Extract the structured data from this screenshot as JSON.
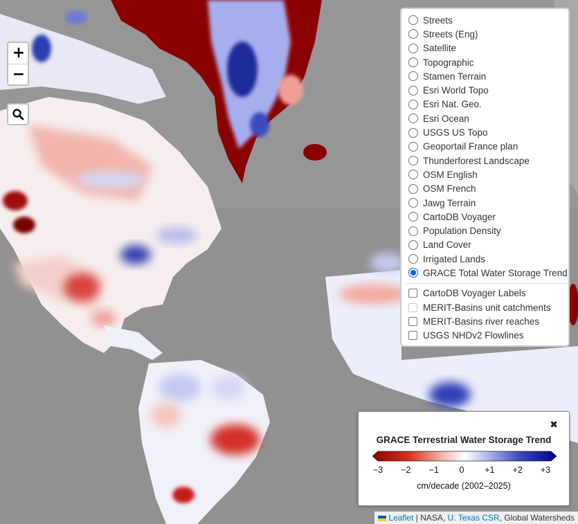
{
  "map": {
    "basemap_color": "#9a9a9a",
    "overlay": "GRACE Total Water Storage Trend",
    "color_scale": {
      "min": -3,
      "max": 3,
      "neg": "#8b0000",
      "mid": "#ffffff",
      "pos": "#00008b"
    }
  },
  "controls": {
    "zoom_in_label": "+",
    "zoom_out_label": "−",
    "search_icon": "search-icon"
  },
  "layers": {
    "base": [
      {
        "label": "Streets",
        "selected": false
      },
      {
        "label": "Streets (Eng)",
        "selected": false
      },
      {
        "label": "Satellite",
        "selected": false
      },
      {
        "label": "Topographic",
        "selected": false
      },
      {
        "label": "Stamen Terrain",
        "selected": false
      },
      {
        "label": "Esri World Topo",
        "selected": false
      },
      {
        "label": "Esri Nat. Geo.",
        "selected": false
      },
      {
        "label": "Esri Ocean",
        "selected": false
      },
      {
        "label": "USGS US Topo",
        "selected": false
      },
      {
        "label": "Geoportail France plan",
        "selected": false
      },
      {
        "label": "Thunderforest Landscape",
        "selected": false
      },
      {
        "label": "OSM English",
        "selected": false
      },
      {
        "label": "OSM French",
        "selected": false
      },
      {
        "label": "Jawg Terrain",
        "selected": false
      },
      {
        "label": "CartoDB Voyager",
        "selected": false
      },
      {
        "label": "Population Density",
        "selected": false
      },
      {
        "label": "Land Cover",
        "selected": false
      },
      {
        "label": "Irrigated Lands",
        "selected": false
      },
      {
        "label": "GRACE Total Water Storage Trend",
        "selected": true
      }
    ],
    "overlays": [
      {
        "label": "CartoDB Voyager Labels",
        "checked": false,
        "disabled": false
      },
      {
        "label": "MERIT-Basins unit catchments",
        "checked": false,
        "disabled": true
      },
      {
        "label": "MERIT-Basins river reaches",
        "checked": false,
        "disabled": false
      },
      {
        "label": "USGS NHDv2 Flowlines",
        "checked": false,
        "disabled": false
      }
    ]
  },
  "legend": {
    "close_label": "✖",
    "title": "GRACE Terrestrial Water Storage Trend",
    "ticks": [
      "−3",
      "−2",
      "−1",
      "0",
      "+1",
      "+2",
      "+3"
    ],
    "units": "cm/decade  (2002–2025)"
  },
  "attribution": {
    "leaflet": "Leaflet",
    "sep1": " | NASA, ",
    "csr": "U. Texas CSR",
    "rest": ", Global Watersheds"
  }
}
